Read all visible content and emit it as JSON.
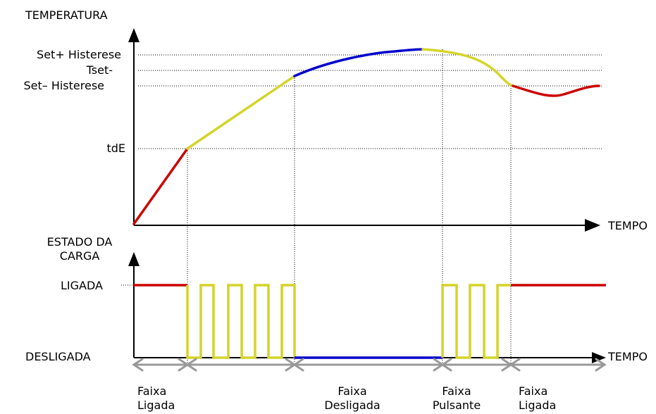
{
  "top_chart": {
    "y_axis_label": "TEMPERATURA",
    "x_axis_label": "TEMPO",
    "levels": {
      "set_plus": "Set+ Histerese",
      "tset": "Tset-",
      "set_minus": "Set– Histerese",
      "tde": "tdE"
    }
  },
  "bottom_chart": {
    "y_axis_label_line1": "ESTADO DA",
    "y_axis_label_line2": "CARGA",
    "x_axis_label": "TEMPO",
    "state_on": "LIGADA",
    "state_off": "DESLIGADA"
  },
  "bands": [
    {
      "line1": "Faixa",
      "line2": "Ligada",
      "color": "#cc0000"
    },
    {
      "line1": "Faixa",
      "line2": "Desligada",
      "color": "#0000cc"
    },
    {
      "line1": "Faixa",
      "line2": "Pulsante",
      "color": "#d4d42a"
    },
    {
      "line1": "Faixa",
      "line2": "Ligada",
      "color": "#cc0000"
    }
  ],
  "colors": {
    "heating": "#cc0000",
    "pulsing": "#d4d42a",
    "off": "#0000cc",
    "band_arrow": "#999999"
  }
}
